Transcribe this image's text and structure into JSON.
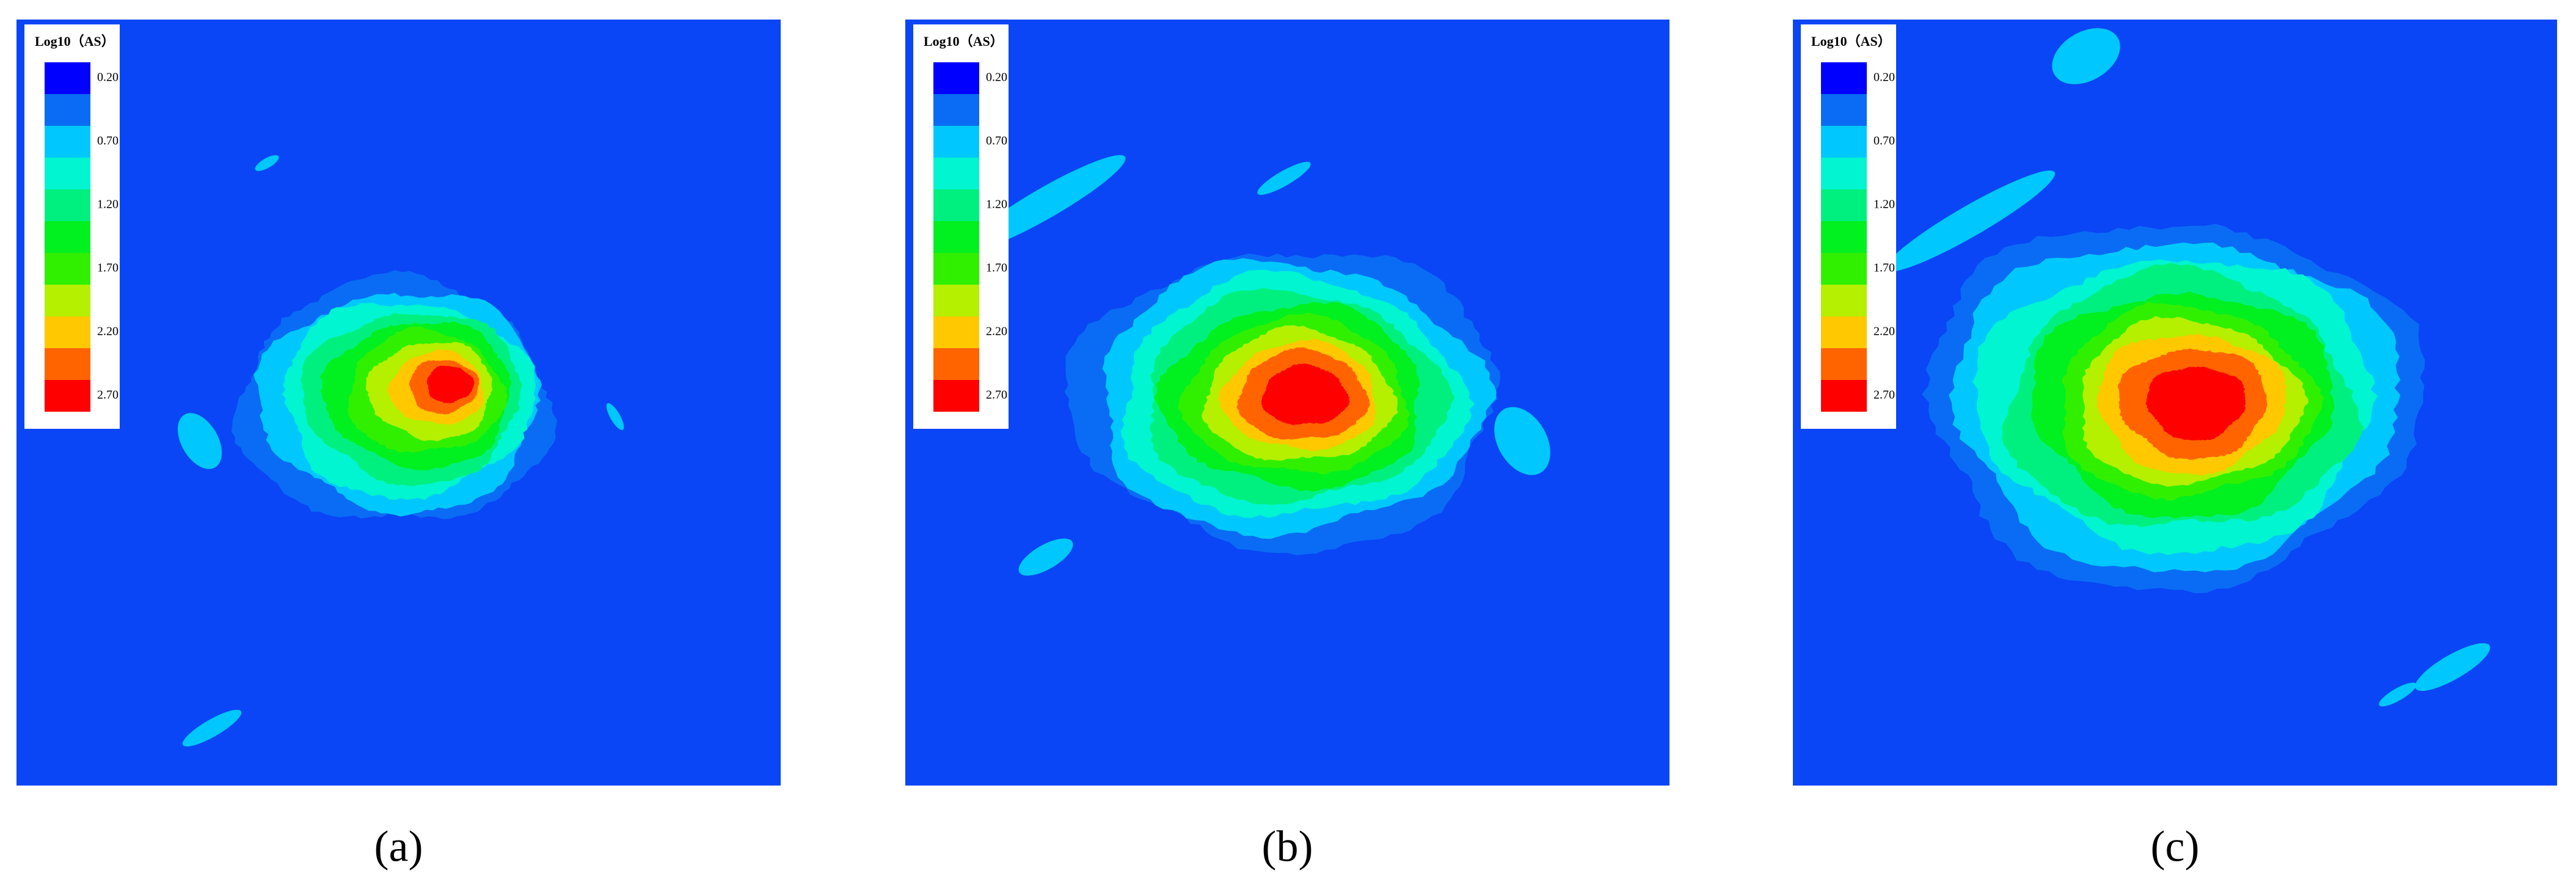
{
  "panels": [
    {
      "legend": {
        "title": "Log10（AS）",
        "colors": [
          "#0000ff",
          "#0a6cf5",
          "#00c8ff",
          "#00f5d0",
          "#00f080",
          "#00f020",
          "#30f000",
          "#b4f000",
          "#ffc800",
          "#ff6400",
          "#ff0000"
        ],
        "labels": [
          {
            "value": 0.2,
            "label": "0.20"
          },
          {
            "value": 0.7,
            "label": "0.70"
          },
          {
            "value": 1.2,
            "label": "1.20"
          },
          {
            "value": 1.7,
            "label": "1.70"
          },
          {
            "value": 2.2,
            "label": "2.20"
          },
          {
            "value": 2.7,
            "label": "2.70"
          }
        ]
      },
      "caption": "(a)"
    },
    {
      "legend": {
        "title": "Log10（AS）",
        "colors": [
          "#0000ff",
          "#0a6cf5",
          "#00c8ff",
          "#00f5d0",
          "#00f080",
          "#00f020",
          "#30f000",
          "#b4f000",
          "#ffc800",
          "#ff6400",
          "#ff0000"
        ],
        "labels": [
          {
            "value": 0.2,
            "label": "0.20"
          },
          {
            "value": 0.7,
            "label": "0.70"
          },
          {
            "value": 1.2,
            "label": "1.20"
          },
          {
            "value": 1.7,
            "label": "1.70"
          },
          {
            "value": 2.2,
            "label": "2.20"
          },
          {
            "value": 2.7,
            "label": "2.70"
          }
        ]
      },
      "caption": "(b)"
    },
    {
      "legend": {
        "title": "Log10（AS）",
        "colors": [
          "#0000ff",
          "#0a6cf5",
          "#00c8ff",
          "#00f5d0",
          "#00f080",
          "#00f020",
          "#30f000",
          "#b4f000",
          "#ffc800",
          "#ff6400",
          "#ff0000"
        ],
        "labels": [
          {
            "value": 0.2,
            "label": "0.20"
          },
          {
            "value": 0.7,
            "label": "0.70"
          },
          {
            "value": 1.2,
            "label": "1.20"
          },
          {
            "value": 1.7,
            "label": "1.70"
          },
          {
            "value": 2.2,
            "label": "2.20"
          },
          {
            "value": 2.7,
            "label": "2.70"
          }
        ]
      },
      "caption": "(c)"
    }
  ]
}
